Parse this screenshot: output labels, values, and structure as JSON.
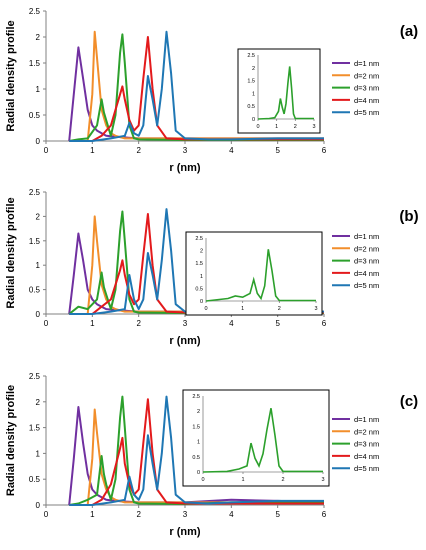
{
  "chart_data": [
    {
      "type": "line",
      "panel_label": "(a)",
      "xlabel": "r (nm)",
      "ylabel": "Radial density profile",
      "xlim": [
        0,
        6
      ],
      "ylim": [
        0,
        2.5
      ],
      "xticks": [
        "0",
        "1",
        "2",
        "3",
        "4",
        "5",
        "6"
      ],
      "yticks": [
        "0",
        "0.5",
        "1",
        "1.5",
        "2",
        "2.5"
      ],
      "legend_position": "right",
      "series": [
        {
          "name": "d=1 nm",
          "color": "#7030a0",
          "x": [
            0.5,
            0.6,
            0.7,
            0.8,
            0.9,
            1.0,
            1.1,
            1.2,
            1.3,
            1.5,
            2.0,
            3.0,
            4.0,
            5.0,
            6.0
          ],
          "y": [
            0,
            0.9,
            1.8,
            1.2,
            0.6,
            0.3,
            0.2,
            0.15,
            0.1,
            0.08,
            0.05,
            0.05,
            0.05,
            0.05,
            0.05
          ]
        },
        {
          "name": "d=2 nm",
          "color": "#f28e2b",
          "x": [
            0.5,
            0.9,
            1.0,
            1.05,
            1.1,
            1.2,
            1.3,
            1.4,
            1.5,
            1.7,
            2.0,
            3.0,
            4.0,
            5.0,
            6.0
          ],
          "y": [
            0,
            0,
            0.9,
            2.1,
            1.6,
            0.6,
            0.3,
            0.15,
            0.1,
            0.05,
            0.05,
            0.05,
            0.05,
            0.05,
            0.05
          ]
        },
        {
          "name": "d=3 nm",
          "color": "#2ca02c",
          "x": [
            0.5,
            0.7,
            0.9,
            1.1,
            1.2,
            1.25,
            1.3,
            1.4,
            1.5,
            1.6,
            1.65,
            1.7,
            1.8,
            1.9,
            2.0,
            3.0,
            4.0,
            6.0
          ],
          "y": [
            0,
            0.03,
            0.05,
            0.3,
            0.8,
            0.55,
            0.4,
            0.1,
            0.5,
            1.7,
            2.05,
            1.5,
            0.3,
            0.05,
            0.03,
            0.02,
            0.02,
            0.02
          ]
        },
        {
          "name": "d=4 nm",
          "color": "#e31a1c",
          "x": [
            0.5,
            1.0,
            1.2,
            1.4,
            1.6,
            1.65,
            1.7,
            1.8,
            1.9,
            2.0,
            2.1,
            2.2,
            2.3,
            2.4,
            2.6,
            3.0,
            4.0,
            6.0
          ],
          "y": [
            0,
            0,
            0.1,
            0.3,
            0.9,
            1.05,
            0.8,
            0.4,
            0.2,
            0.3,
            1.2,
            2.0,
            1.0,
            0.3,
            0.05,
            0.03,
            0.03,
            0.03
          ]
        },
        {
          "name": "d=5 nm",
          "color": "#1f77b4",
          "x": [
            0.5,
            1.0,
            1.4,
            1.7,
            1.8,
            1.9,
            2.0,
            2.1,
            2.2,
            2.3,
            2.4,
            2.5,
            2.6,
            2.7,
            2.8,
            3.0,
            3.5,
            4.0,
            5.0,
            6.0
          ],
          "y": [
            0,
            0,
            0.05,
            0.1,
            0.35,
            0.15,
            0.1,
            0.3,
            1.25,
            0.8,
            0.3,
            1.0,
            2.1,
            1.3,
            0.2,
            0.05,
            0.03,
            0.03,
            0.05,
            0.05
          ]
        }
      ],
      "inset": {
        "type": "line",
        "series_name": "d=3 nm",
        "color": "#2ca02c",
        "xlim": [
          0,
          3
        ],
        "ylim": [
          0,
          2.5
        ],
        "xticks": [
          "0",
          "1",
          "2",
          "3"
        ],
        "yticks": [
          "0",
          "0.5",
          "1",
          "1.5",
          "2",
          "2.5"
        ],
        "x": [
          0,
          0.6,
          0.9,
          1.1,
          1.2,
          1.3,
          1.4,
          1.5,
          1.6,
          1.7,
          1.8,
          1.9,
          2.0,
          2.5,
          3.0
        ],
        "y": [
          0,
          0.02,
          0.05,
          0.3,
          0.8,
          0.45,
          0.2,
          0.6,
          1.4,
          2.05,
          1.2,
          0.2,
          0.02,
          0.02,
          0.02
        ]
      }
    },
    {
      "type": "line",
      "panel_label": "(b)",
      "xlabel": "r (nm)",
      "ylabel": "Radial density profile",
      "xlim": [
        0,
        6
      ],
      "ylim": [
        0,
        2.5
      ],
      "xticks": [
        "0",
        "1",
        "2",
        "3",
        "4",
        "5",
        "6"
      ],
      "yticks": [
        "0",
        "0.5",
        "1",
        "1.5",
        "2",
        "2.5"
      ],
      "legend_position": "right",
      "series": [
        {
          "name": "d=1 nm",
          "color": "#7030a0",
          "x": [
            0.5,
            0.6,
            0.7,
            0.8,
            0.9,
            1.0,
            1.1,
            1.2,
            1.3,
            1.5,
            2.0,
            3.0,
            4.0,
            5.0,
            6.0
          ],
          "y": [
            0,
            0.8,
            1.65,
            1.1,
            0.5,
            0.3,
            0.2,
            0.15,
            0.1,
            0.08,
            0.05,
            0.05,
            0.05,
            0.05,
            0.05
          ]
        },
        {
          "name": "d=2 nm",
          "color": "#f28e2b",
          "x": [
            0.5,
            0.9,
            1.0,
            1.05,
            1.1,
            1.2,
            1.3,
            1.4,
            1.5,
            1.7,
            2.0,
            3.0,
            4.0,
            5.0,
            6.0
          ],
          "y": [
            0,
            0,
            1.0,
            2.0,
            1.5,
            0.6,
            0.3,
            0.15,
            0.1,
            0.05,
            0.05,
            0.05,
            0.05,
            0.05,
            0.05
          ]
        },
        {
          "name": "d=3 nm",
          "color": "#2ca02c",
          "x": [
            0.5,
            0.7,
            0.9,
            1.1,
            1.2,
            1.25,
            1.3,
            1.4,
            1.5,
            1.6,
            1.65,
            1.7,
            1.8,
            1.9,
            2.0,
            3.0,
            4.0,
            6.0
          ],
          "y": [
            0,
            0.15,
            0.1,
            0.3,
            0.85,
            0.55,
            0.4,
            0.1,
            0.5,
            1.7,
            2.1,
            1.5,
            0.3,
            0.05,
            0.03,
            0.02,
            0.02,
            0.02
          ]
        },
        {
          "name": "d=4 nm",
          "color": "#e31a1c",
          "x": [
            0.5,
            1.0,
            1.2,
            1.4,
            1.6,
            1.65,
            1.7,
            1.8,
            1.9,
            2.0,
            2.1,
            2.2,
            2.3,
            2.4,
            2.6,
            3.0,
            4.0,
            6.0
          ],
          "y": [
            0,
            0,
            0.15,
            0.3,
            0.9,
            1.1,
            0.8,
            0.4,
            0.2,
            0.3,
            1.2,
            2.05,
            1.0,
            0.3,
            0.05,
            0.03,
            0.03,
            0.03
          ]
        },
        {
          "name": "d=5 nm",
          "color": "#1f77b4",
          "x": [
            0.5,
            1.0,
            1.4,
            1.7,
            1.8,
            1.9,
            2.0,
            2.1,
            2.2,
            2.3,
            2.4,
            2.5,
            2.6,
            2.7,
            2.8,
            3.0,
            3.5,
            4.0,
            5.0,
            6.0
          ],
          "y": [
            0,
            0,
            0.05,
            0.1,
            0.8,
            0.3,
            0.1,
            0.3,
            1.25,
            0.8,
            0.3,
            1.1,
            2.15,
            1.3,
            0.2,
            0.05,
            0.03,
            0.03,
            0.05,
            0.05
          ]
        }
      ],
      "inset": {
        "type": "line",
        "series_name": "d=3 nm",
        "color": "#2ca02c",
        "xlim": [
          0,
          3
        ],
        "ylim": [
          0,
          2.5
        ],
        "xticks": [
          "0",
          "1",
          "2",
          "3"
        ],
        "yticks": [
          "0",
          "0.5",
          "1",
          "1.5",
          "2",
          "2.5"
        ],
        "x": [
          0,
          0.6,
          0.8,
          1.0,
          1.2,
          1.3,
          1.4,
          1.5,
          1.6,
          1.7,
          1.8,
          1.9,
          2.0,
          2.5,
          3.0
        ],
        "y": [
          0,
          0.1,
          0.2,
          0.15,
          0.3,
          0.85,
          0.3,
          0.1,
          0.6,
          2.05,
          1.2,
          0.2,
          0.02,
          0.02,
          0.02
        ]
      }
    },
    {
      "type": "line",
      "panel_label": "(c)",
      "xlabel": "r (nm)",
      "ylabel": "Radial density profile",
      "xlim": [
        0,
        6
      ],
      "ylim": [
        0,
        2.5
      ],
      "xticks": [
        "0",
        "1",
        "2",
        "3",
        "4",
        "5",
        "6"
      ],
      "yticks": [
        "0",
        "0.5",
        "1",
        "1.5",
        "2",
        "2.5"
      ],
      "legend_position": "right",
      "series": [
        {
          "name": "d=1 nm",
          "color": "#7030a0",
          "x": [
            0.5,
            0.6,
            0.7,
            0.8,
            0.9,
            1.0,
            1.1,
            1.2,
            1.3,
            1.5,
            2.0,
            3.0,
            4.0,
            5.0,
            6.0
          ],
          "y": [
            0,
            0.9,
            1.9,
            1.2,
            0.6,
            0.3,
            0.2,
            0.15,
            0.1,
            0.08,
            0.05,
            0.05,
            0.1,
            0.08,
            0.05
          ]
        },
        {
          "name": "d=2 nm",
          "color": "#f28e2b",
          "x": [
            0.5,
            0.9,
            1.0,
            1.05,
            1.1,
            1.2,
            1.3,
            1.4,
            1.5,
            1.7,
            2.0,
            3.0,
            4.0,
            5.0,
            6.0
          ],
          "y": [
            0,
            0,
            0.9,
            1.85,
            1.4,
            0.6,
            0.3,
            0.15,
            0.1,
            0.05,
            0.05,
            0.05,
            0.05,
            0.05,
            0.05
          ]
        },
        {
          "name": "d=3 nm",
          "color": "#2ca02c",
          "x": [
            0.5,
            0.7,
            0.9,
            1.1,
            1.2,
            1.25,
            1.3,
            1.4,
            1.5,
            1.6,
            1.65,
            1.7,
            1.8,
            1.9,
            2.0,
            3.0,
            4.0,
            6.0
          ],
          "y": [
            0,
            0.03,
            0.1,
            0.2,
            0.95,
            0.6,
            0.4,
            0.1,
            0.5,
            1.7,
            2.1,
            1.5,
            0.3,
            0.05,
            0.03,
            0.02,
            0.05,
            0.05
          ]
        },
        {
          "name": "d=4 nm",
          "color": "#e31a1c",
          "x": [
            0.5,
            1.0,
            1.2,
            1.4,
            1.6,
            1.65,
            1.7,
            1.8,
            1.9,
            2.0,
            2.1,
            2.2,
            2.3,
            2.4,
            2.6,
            3.0,
            4.0,
            6.0
          ],
          "y": [
            0,
            0,
            0.1,
            0.4,
            1.1,
            1.3,
            0.8,
            0.4,
            0.2,
            0.3,
            1.2,
            2.05,
            1.0,
            0.3,
            0.05,
            0.03,
            0.03,
            0.03
          ]
        },
        {
          "name": "d=5 nm",
          "color": "#1f77b4",
          "x": [
            0.5,
            1.0,
            1.4,
            1.7,
            1.8,
            1.9,
            2.0,
            2.1,
            2.2,
            2.3,
            2.4,
            2.5,
            2.6,
            2.7,
            2.8,
            3.0,
            3.5,
            4.0,
            5.0,
            6.0
          ],
          "y": [
            0,
            0,
            0.05,
            0.1,
            0.55,
            0.2,
            0.1,
            0.3,
            1.35,
            0.8,
            0.3,
            1.0,
            2.1,
            1.3,
            0.2,
            0.05,
            0.03,
            0.05,
            0.08,
            0.08
          ]
        }
      ],
      "inset": {
        "type": "line",
        "series_name": "d=3 nm",
        "color": "#2ca02c",
        "xlim": [
          0,
          3
        ],
        "ylim": [
          0,
          2.5
        ],
        "xticks": [
          "0",
          "1",
          "2",
          "3"
        ],
        "yticks": [
          "0",
          "0.5",
          "1",
          "1.5",
          "2",
          "2.5"
        ],
        "x": [
          0,
          0.6,
          0.9,
          1.1,
          1.2,
          1.3,
          1.4,
          1.5,
          1.6,
          1.7,
          1.8,
          1.9,
          2.0,
          2.5,
          3.0
        ],
        "y": [
          0,
          0.02,
          0.1,
          0.2,
          0.95,
          0.45,
          0.2,
          0.6,
          1.4,
          2.1,
          1.2,
          0.2,
          0.02,
          0.02,
          0.02
        ]
      }
    }
  ]
}
